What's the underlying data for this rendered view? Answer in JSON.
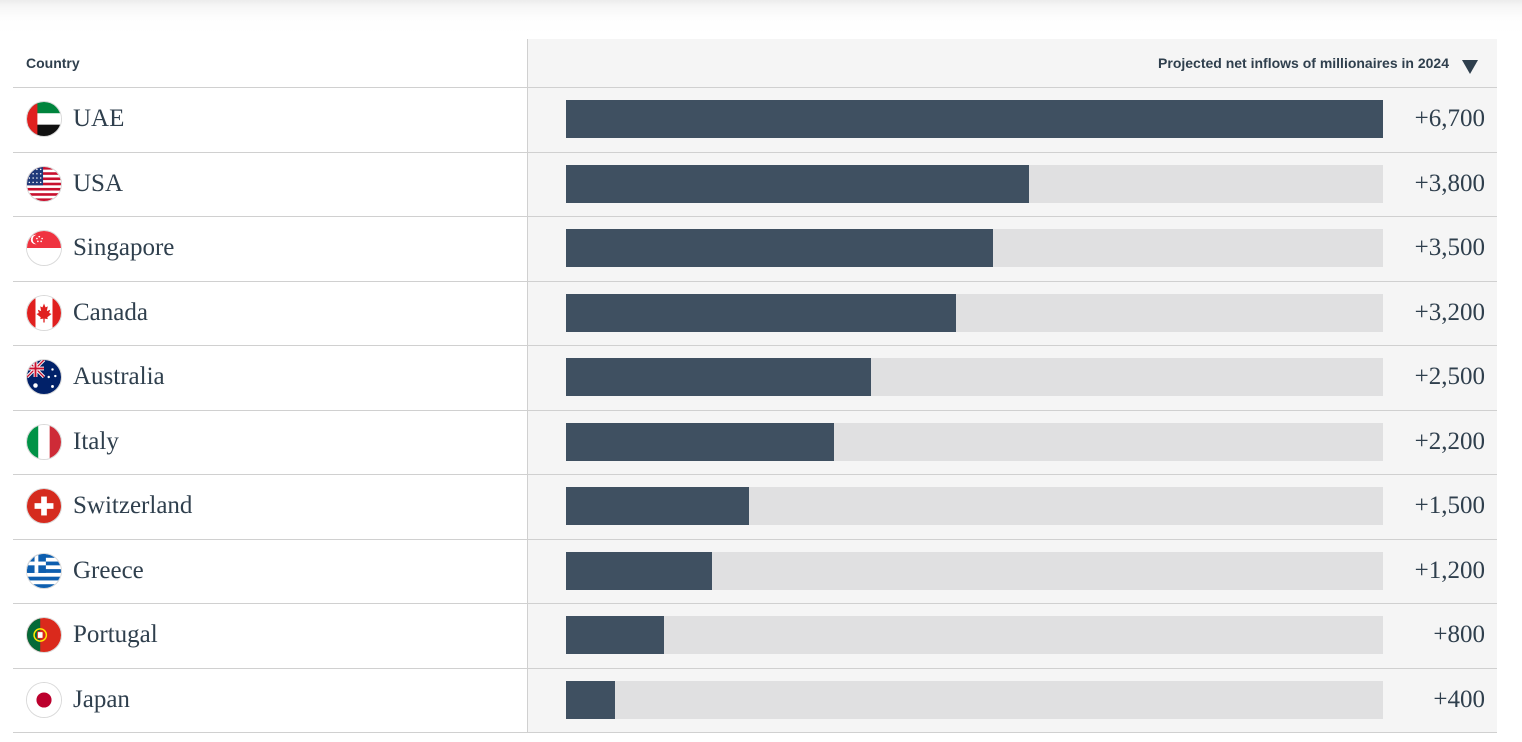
{
  "header": {
    "country_label": "Country",
    "metric_label": "Projected net inflows of millionaires in 2024",
    "sort_icon": "triangle-down-icon"
  },
  "colors": {
    "bar_fill": "#3f5061",
    "bar_track": "#e0e0e1",
    "panel_bg": "#f5f5f5",
    "text": "#2f3f4d"
  },
  "chart_data": {
    "type": "bar",
    "orientation": "horizontal",
    "title": "",
    "xlabel": "Projected net inflows of millionaires in 2024",
    "ylabel": "Country",
    "categories": [
      "UAE",
      "USA",
      "Singapore",
      "Canada",
      "Australia",
      "Italy",
      "Switzerland",
      "Greece",
      "Portugal",
      "Japan"
    ],
    "values": [
      6700,
      3800,
      3500,
      3200,
      2500,
      2200,
      1500,
      1200,
      800,
      400
    ],
    "value_labels": [
      "+6,700",
      "+3,800",
      "+3,500",
      "+3,200",
      "+2,500",
      "+2,200",
      "+1,500",
      "+1,200",
      "+800",
      "+400"
    ],
    "xlim": [
      0,
      6700
    ],
    "grid": false,
    "legend": "none"
  },
  "rows": [
    {
      "flag": "uae-flag-icon"
    },
    {
      "flag": "usa-flag-icon"
    },
    {
      "flag": "singapore-flag-icon"
    },
    {
      "flag": "canada-flag-icon"
    },
    {
      "flag": "australia-flag-icon"
    },
    {
      "flag": "italy-flag-icon"
    },
    {
      "flag": "switzerland-flag-icon"
    },
    {
      "flag": "greece-flag-icon"
    },
    {
      "flag": "portugal-flag-icon"
    },
    {
      "flag": "japan-flag-icon"
    }
  ]
}
